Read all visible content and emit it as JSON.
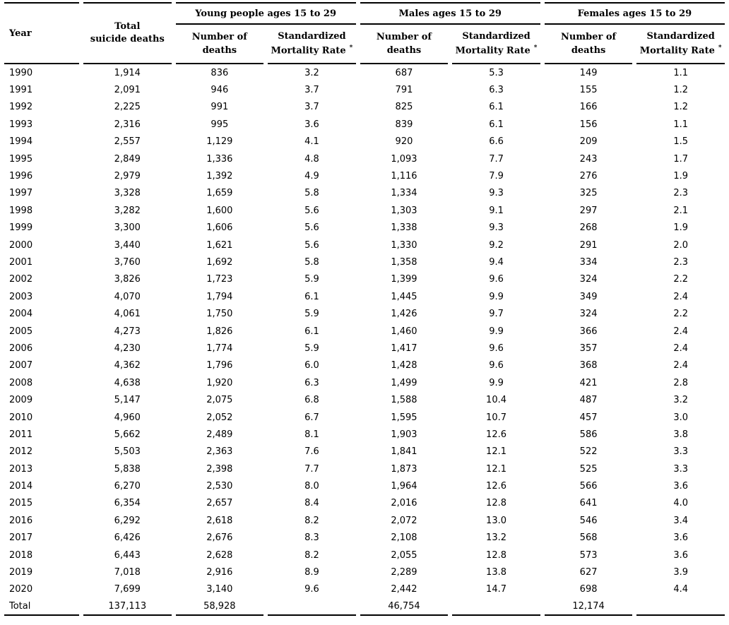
{
  "page": {
    "background_color": "#ffffff",
    "text_color": "#000000",
    "rule_color": "#000000"
  },
  "table": {
    "headers": {
      "year": "Year",
      "total": "Total\nsuicide deaths",
      "number_of_deaths": "Number of\ndeaths",
      "smr": "Standardized\nMortality Rate",
      "smr_footnote_symbol": "*"
    },
    "groups": [
      {
        "label": "Young people ages 15 to 29"
      },
      {
        "label": "Males ages 15 to 29"
      },
      {
        "label": "Females ages 15 to 29"
      }
    ],
    "rows": [
      [
        "1990",
        "1,914",
        "836",
        "3.2",
        "687",
        "5.3",
        "149",
        "1.1"
      ],
      [
        "1991",
        "2,091",
        "946",
        "3.7",
        "791",
        "6.3",
        "155",
        "1.2"
      ],
      [
        "1992",
        "2,225",
        "991",
        "3.7",
        "825",
        "6.1",
        "166",
        "1.2"
      ],
      [
        "1993",
        "2,316",
        "995",
        "3.6",
        "839",
        "6.1",
        "156",
        "1.1"
      ],
      [
        "1994",
        "2,557",
        "1,129",
        "4.1",
        "920",
        "6.6",
        "209",
        "1.5"
      ],
      [
        "1995",
        "2,849",
        "1,336",
        "4.8",
        "1,093",
        "7.7",
        "243",
        "1.7"
      ],
      [
        "1996",
        "2,979",
        "1,392",
        "4.9",
        "1,116",
        "7.9",
        "276",
        "1.9"
      ],
      [
        "1997",
        "3,328",
        "1,659",
        "5.8",
        "1,334",
        "9.3",
        "325",
        "2.3"
      ],
      [
        "1998",
        "3,282",
        "1,600",
        "5.6",
        "1,303",
        "9.1",
        "297",
        "2.1"
      ],
      [
        "1999",
        "3,300",
        "1,606",
        "5.6",
        "1,338",
        "9.3",
        "268",
        "1.9"
      ],
      [
        "2000",
        "3,440",
        "1,621",
        "5.6",
        "1,330",
        "9.2",
        "291",
        "2.0"
      ],
      [
        "2001",
        "3,760",
        "1,692",
        "5.8",
        "1,358",
        "9.4",
        "334",
        "2.3"
      ],
      [
        "2002",
        "3,826",
        "1,723",
        "5.9",
        "1,399",
        "9.6",
        "324",
        "2.2"
      ],
      [
        "2003",
        "4,070",
        "1,794",
        "6.1",
        "1,445",
        "9.9",
        "349",
        "2.4"
      ],
      [
        "2004",
        "4,061",
        "1,750",
        "5.9",
        "1,426",
        "9.7",
        "324",
        "2.2"
      ],
      [
        "2005",
        "4,273",
        "1,826",
        "6.1",
        "1,460",
        "9.9",
        "366",
        "2.4"
      ],
      [
        "2006",
        "4,230",
        "1,774",
        "5.9",
        "1,417",
        "9.6",
        "357",
        "2.4"
      ],
      [
        "2007",
        "4,362",
        "1,796",
        "6.0",
        "1,428",
        "9.6",
        "368",
        "2.4"
      ],
      [
        "2008",
        "4,638",
        "1,920",
        "6.3",
        "1,499",
        "9.9",
        "421",
        "2.8"
      ],
      [
        "2009",
        "5,147",
        "2,075",
        "6.8",
        "1,588",
        "10.4",
        "487",
        "3.2"
      ],
      [
        "2010",
        "4,960",
        "2,052",
        "6.7",
        "1,595",
        "10.7",
        "457",
        "3.0"
      ],
      [
        "2011",
        "5,662",
        "2,489",
        "8.1",
        "1,903",
        "12.6",
        "586",
        "3.8"
      ],
      [
        "2012",
        "5,503",
        "2,363",
        "7.6",
        "1,841",
        "12.1",
        "522",
        "3.3"
      ],
      [
        "2013",
        "5,838",
        "2,398",
        "7.7",
        "1,873",
        "12.1",
        "525",
        "3.3"
      ],
      [
        "2014",
        "6,270",
        "2,530",
        "8.0",
        "1,964",
        "12.6",
        "566",
        "3.6"
      ],
      [
        "2015",
        "6,354",
        "2,657",
        "8.4",
        "2,016",
        "12.8",
        "641",
        "4.0"
      ],
      [
        "2016",
        "6,292",
        "2,618",
        "8.2",
        "2,072",
        "13.0",
        "546",
        "3.4"
      ],
      [
        "2017",
        "6,426",
        "2,676",
        "8.3",
        "2,108",
        "13.2",
        "568",
        "3.6"
      ],
      [
        "2018",
        "6,443",
        "2,628",
        "8.2",
        "2,055",
        "12.8",
        "573",
        "3.6"
      ],
      [
        "2019",
        "7,018",
        "2,916",
        "8.9",
        "2,289",
        "13.8",
        "627",
        "3.9"
      ],
      [
        "2020",
        "7,699",
        "3,140",
        "9.6",
        "2,442",
        "14.7",
        "698",
        "4.4"
      ]
    ],
    "total_row": {
      "label": "Total",
      "values": [
        "137,113",
        "58,928",
        "",
        "46,754",
        "",
        "12,174",
        ""
      ]
    }
  }
}
